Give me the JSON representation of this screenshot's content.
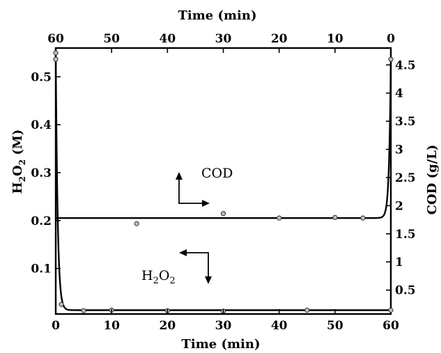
{
  "chart_data": {
    "type": "scatter",
    "bottom_axis": {
      "label": "Time (min)",
      "range": [
        0,
        60
      ],
      "ticks": [
        "0",
        "10",
        "20",
        "30",
        "40",
        "50",
        "60"
      ]
    },
    "top_axis": {
      "label": "Time (min)",
      "range": [
        60,
        0
      ],
      "ticks": [
        "60",
        "50",
        "40",
        "30",
        "20",
        "10",
        "0"
      ]
    },
    "left_axis": {
      "label_base": "H",
      "label_sub": "2",
      "label_mid": "O",
      "label_sub2": "2",
      "label_tail": " (M)",
      "range": [
        0.005,
        0.56
      ],
      "ticks": [
        "0.1",
        "0.2",
        "0.3",
        "0.4",
        "0.5"
      ]
    },
    "right_axis": {
      "label": "COD (g/L)",
      "range": [
        0.075,
        4.8
      ],
      "ticks": [
        "0.5",
        "1",
        "1.5",
        "2",
        "2.5",
        "3",
        "3.5",
        "4",
        "4.5"
      ]
    },
    "series": [
      {
        "axis": "left",
        "x": [
          0,
          1,
          5,
          10,
          20,
          30,
          45,
          60
        ],
        "y": [
          0.55,
          0.025,
          0.012,
          0.013,
          0.012,
          0.011,
          0.013,
          0.013
        ]
      },
      {
        "axis": "right",
        "x_top": [
          60,
          45.5,
          30,
          20,
          10,
          5,
          0
        ],
        "y": [
          4.6,
          1.68,
          1.86,
          1.78,
          1.79,
          1.78,
          4.6
        ]
      }
    ],
    "annotations": {
      "cod": "COD",
      "h2o2_base": "H",
      "h2o2_sub": "2",
      "h2o2_mid": "O",
      "h2o2_sub2": "2"
    }
  }
}
